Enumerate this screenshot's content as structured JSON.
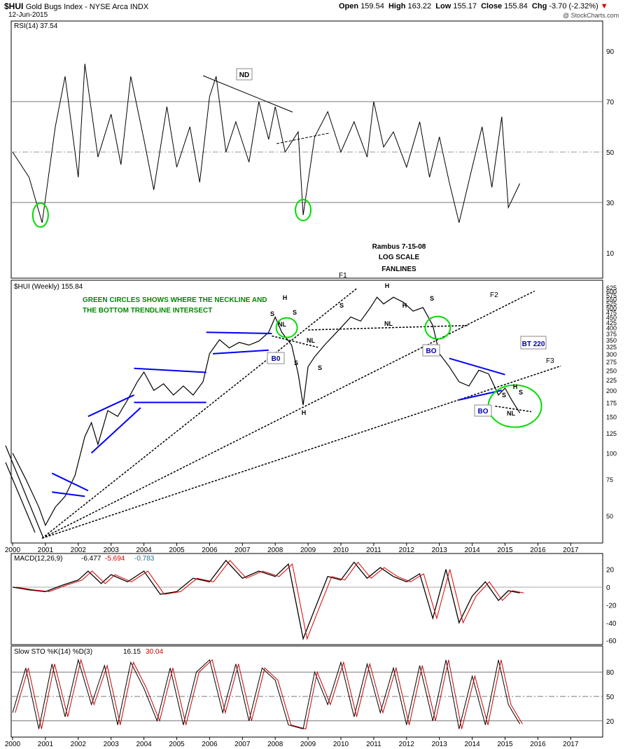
{
  "header": {
    "symbol": "$HUI",
    "name": "Gold Bugs Index - NYSE Arca INDX",
    "date": "12-Jun-2015",
    "open_label": "Open",
    "open": "159.54",
    "high_label": "High",
    "high": "163.22",
    "low_label": "Low",
    "low": "155.17",
    "close_label": "Close",
    "close": "155.84",
    "chg_label": "Chg",
    "chg": "-3.70 (-2.32%)",
    "watermark": "@ StockCharts.com"
  },
  "colors": {
    "price": "#000000",
    "trend_blue": "#0000ff",
    "green_circle": "#00dd00",
    "annotation_green": "#008800",
    "macd_signal": "#dd0000",
    "macd_hist": "#2a6f8a",
    "sto_d": "#cc0000",
    "rsi_overbought_fill": "#3a5a3a",
    "rsi_oversold_fill": "#7a4a4a",
    "ref_line": "#888888"
  },
  "x_axis_years": [
    "2000",
    "2001",
    "2002",
    "2003",
    "2004",
    "2005",
    "2006",
    "2007",
    "2008",
    "2009",
    "2010",
    "2011",
    "2012",
    "2013",
    "2014",
    "2015",
    "2016",
    "2017"
  ],
  "panels": {
    "rsi": {
      "label": "RSI(14) 37.54",
      "ticks": [
        "90",
        "70",
        "50",
        "30",
        "10"
      ],
      "levels": [
        90,
        70,
        50,
        30,
        10
      ],
      "ylim": [
        0,
        100
      ]
    },
    "price": {
      "label": "$HUI (Weekly) 155.84",
      "scale": "log",
      "ticks": [
        "625",
        "600",
        "575",
        "550",
        "525",
        "500",
        "475",
        "450",
        "425",
        "400",
        "375",
        "350",
        "325",
        "300",
        "275",
        "250",
        "225",
        "200",
        "175",
        "150",
        "125",
        "100",
        "75",
        "50"
      ],
      "ylim": [
        37,
        640
      ]
    },
    "macd": {
      "label_a": "MACD(12,26,9)",
      "value_a": "-6.477",
      "value_b": "-5.694",
      "value_c": "-0.783",
      "ticks": [
        "20",
        "0",
        "-20",
        "-40",
        "-60"
      ],
      "levels": [
        20,
        0,
        -20,
        -40,
        -60
      ]
    },
    "sto": {
      "label_a": "Slow STO %K(14) %D(3)",
      "value_a": "16.15",
      "value_b": "30.04",
      "ticks": [
        "80",
        "50",
        "20"
      ],
      "levels": [
        80,
        50,
        20
      ]
    }
  },
  "annotations": {
    "title1": "Rambus  7-15-08",
    "title2": "LOG SCALE",
    "title3": "FANLINES",
    "note1": "GREEN CIRCLES SHOWS WHERE THE NECKLINE AND",
    "note2": "THE BOTTOM TRENDLINE INTERSECT",
    "f1": "F1",
    "f2": "F2",
    "f3": "F3",
    "nd": "ND",
    "bo": "BO",
    "bo_left": "B0",
    "bt220": "BT 220",
    "h": "H",
    "s": "S",
    "nl": "NL"
  },
  "chart_data": [
    {
      "type": "line",
      "title": "RSI(14) 37.54",
      "x": [
        2000.0,
        2000.5,
        2000.9,
        2001.3,
        2001.6,
        2002.0,
        2002.2,
        2002.6,
        2003.0,
        2003.3,
        2003.6,
        2004.0,
        2004.3,
        2004.7,
        2005.0,
        2005.4,
        2005.7,
        2006.0,
        2006.2,
        2006.5,
        2006.8,
        2007.2,
        2007.5,
        2007.8,
        2008.0,
        2008.3,
        2008.7,
        2008.85,
        2009.2,
        2009.6,
        2010.0,
        2010.4,
        2010.8,
        2011.0,
        2011.3,
        2011.6,
        2012.0,
        2012.4,
        2012.7,
        2013.0,
        2013.3,
        2013.6,
        2014.0,
        2014.3,
        2014.6,
        2014.9,
        2015.1,
        2015.45
      ],
      "y": [
        50,
        40,
        22,
        60,
        80,
        40,
        85,
        48,
        65,
        45,
        80,
        55,
        35,
        68,
        44,
        60,
        38,
        72,
        80,
        50,
        62,
        46,
        70,
        55,
        68,
        50,
        58,
        25,
        56,
        66,
        50,
        62,
        48,
        70,
        52,
        58,
        44,
        62,
        40,
        56,
        38,
        22,
        44,
        60,
        36,
        64,
        28,
        37.54
      ],
      "ylim": [
        0,
        100
      ]
    },
    {
      "type": "line",
      "title": "$HUI (Weekly) 155.84",
      "scale": "log",
      "x": [
        2000.0,
        2000.4,
        2000.8,
        2001.0,
        2001.3,
        2001.6,
        2001.9,
        2002.2,
        2002.4,
        2002.6,
        2002.9,
        2003.2,
        2003.5,
        2003.8,
        2004.0,
        2004.3,
        2004.6,
        2004.9,
        2005.2,
        2005.5,
        2005.8,
        2006.0,
        2006.3,
        2006.6,
        2006.9,
        2007.2,
        2007.5,
        2007.8,
        2008.0,
        2008.2,
        2008.5,
        2008.7,
        2008.85,
        2009.0,
        2009.2,
        2009.5,
        2009.8,
        2010.0,
        2010.3,
        2010.6,
        2010.9,
        2011.1,
        2011.3,
        2011.6,
        2011.9,
        2012.2,
        2012.5,
        2012.8,
        2013.0,
        2013.3,
        2013.6,
        2013.9,
        2014.2,
        2014.5,
        2014.8,
        2015.0,
        2015.2,
        2015.45
      ],
      "y": [
        100,
        75,
        55,
        45,
        55,
        62,
        78,
        120,
        140,
        110,
        160,
        150,
        180,
        220,
        245,
        200,
        215,
        190,
        210,
        190,
        220,
        300,
        350,
        320,
        340,
        330,
        345,
        380,
        450,
        380,
        330,
        240,
        170,
        260,
        290,
        330,
        370,
        400,
        450,
        430,
        500,
        560,
        520,
        560,
        530,
        480,
        500,
        410,
        300,
        260,
        220,
        210,
        250,
        240,
        190,
        205,
        180,
        155.84
      ],
      "ylim": [
        37,
        640
      ]
    },
    {
      "type": "line",
      "title": "MACD(12,26,9)",
      "x": [
        2000.0,
        2000.5,
        2001.0,
        2001.5,
        2002.0,
        2002.3,
        2002.7,
        2003.0,
        2003.5,
        2004.0,
        2004.5,
        2005.0,
        2005.5,
        2006.0,
        2006.5,
        2007.0,
        2007.5,
        2008.0,
        2008.4,
        2008.85,
        2009.2,
        2009.6,
        2010.0,
        2010.4,
        2010.8,
        2011.2,
        2011.6,
        2012.0,
        2012.4,
        2012.8,
        2013.2,
        2013.6,
        2014.0,
        2014.4,
        2014.8,
        2015.1,
        2015.45
      ],
      "y": [
        0,
        -3,
        -5,
        2,
        8,
        18,
        4,
        14,
        6,
        18,
        -8,
        -5,
        10,
        6,
        30,
        10,
        18,
        12,
        26,
        -58,
        -25,
        12,
        8,
        28,
        10,
        22,
        12,
        6,
        15,
        -35,
        20,
        -40,
        -10,
        6,
        -15,
        -4,
        -6.477
      ],
      "series": [
        {
          "name": "MACD(12,26,9)",
          "value": -6.477
        },
        {
          "name": "signal",
          "value": -5.694
        },
        {
          "name": "histogram",
          "value": -0.783
        }
      ],
      "ylim": [
        -65,
        30
      ]
    },
    {
      "type": "line",
      "title": "Slow STO %K(14) %D(3)",
      "x": [
        2000.0,
        2000.4,
        2000.8,
        2001.2,
        2001.6,
        2002.0,
        2002.4,
        2002.8,
        2003.2,
        2003.6,
        2004.0,
        2004.4,
        2004.8,
        2005.2,
        2005.6,
        2006.0,
        2006.4,
        2006.8,
        2007.2,
        2007.6,
        2008.0,
        2008.4,
        2008.85,
        2009.2,
        2009.6,
        2010.0,
        2010.4,
        2010.8,
        2011.2,
        2011.6,
        2012.0,
        2012.4,
        2012.8,
        2013.2,
        2013.6,
        2014.0,
        2014.4,
        2014.8,
        2015.1,
        2015.45
      ],
      "y": [
        30,
        85,
        10,
        90,
        25,
        95,
        40,
        88,
        15,
        92,
        60,
        20,
        85,
        15,
        80,
        95,
        30,
        90,
        20,
        85,
        70,
        15,
        10,
        80,
        40,
        92,
        25,
        90,
        30,
        85,
        15,
        88,
        20,
        95,
        10,
        75,
        15,
        95,
        40,
        16.15
      ],
      "series": [
        {
          "name": "%K(14)",
          "value": 16.15
        },
        {
          "name": "%D(3)",
          "value": 30.04
        }
      ],
      "ylim": [
        0,
        100
      ]
    }
  ]
}
